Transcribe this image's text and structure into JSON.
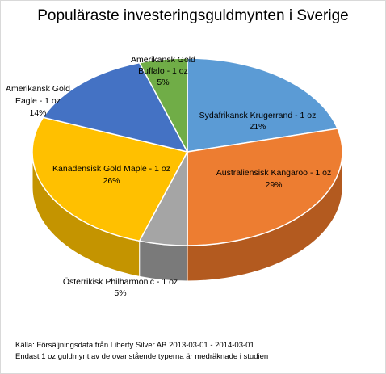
{
  "chart_data": {
    "type": "pie",
    "title": "Populäraste investeringsguldmynten i Sverige",
    "slices": [
      {
        "name": "Sydafrikansk Krugerrand - 1 oz",
        "percent": "21%",
        "value": 21,
        "color": "#5b9bd5",
        "side": "#3d76ab"
      },
      {
        "name": "Australiensisk Kangaroo - 1 oz",
        "percent": "29%",
        "value": 29,
        "color": "#ed7d31",
        "side": "#b35a1f"
      },
      {
        "name": "Österrikisk Philharmonic - 1 oz",
        "percent": "5%",
        "value": 5,
        "color": "#a5a5a5",
        "side": "#7a7a7a"
      },
      {
        "name": "Kanadensisk Gold Maple - 1 oz",
        "percent": "26%",
        "value": 26,
        "color": "#ffc000",
        "side": "#c49400"
      },
      {
        "name": "Amerikansk Gold Eagle - 1 oz",
        "percent": "14%",
        "value": 14,
        "color": "#4472c4",
        "side": "#2f5597"
      },
      {
        "name": "Amerikansk Gold Buffalo - 1 oz",
        "percent": "5%",
        "value": 5,
        "color": "#70ad47",
        "side": "#4e8031"
      }
    ]
  },
  "labels": {
    "krugerrand": {
      "line1": "Sydafrikansk Krugerrand - 1 oz",
      "line2": "21%"
    },
    "kangaroo": {
      "line1": "Australiensisk Kangaroo - 1 oz",
      "line2": "29%"
    },
    "philharmonic": {
      "line1": "Österrikisk Philharmonic - 1 oz",
      "line2": "5%"
    },
    "maple": {
      "line1": "Kanadensisk Gold Maple - 1 oz",
      "line2": "26%"
    },
    "eagle": {
      "line1": "Amerikansk Gold",
      "line2": "Eagle - 1 oz",
      "line3": "14%"
    },
    "buffalo": {
      "line1": "Amerikansk Gold",
      "line2": "Buffalo - 1 oz",
      "line3": "5%"
    }
  },
  "footnotes": {
    "line1": "Källa: Försäljningsdata från Liberty Silver AB 2013-03-01 - 2014-03-01.",
    "line2": "Endast 1 oz guldmynt av de ovanstående typerna är medräknade i studien"
  }
}
